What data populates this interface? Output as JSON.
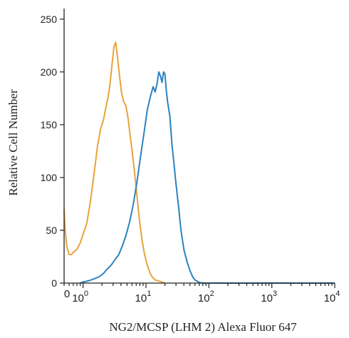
{
  "chart_data": {
    "type": "line",
    "title": "",
    "xlabel": "NG2/MCSP (LHM 2) Alexa Fluor 647",
    "ylabel": "Relative Cell Number",
    "x_scale": "log",
    "x_axis_start_label": "0",
    "xlim": [
      0.5,
      10000
    ],
    "ylim": [
      0,
      260
    ],
    "y_ticks": [
      0,
      50,
      100,
      150,
      200,
      250
    ],
    "x_tick_labels": [
      {
        "base": "10",
        "exp": "0",
        "value": 1
      },
      {
        "base": "10",
        "exp": "1",
        "value": 10
      },
      {
        "base": "10",
        "exp": "2",
        "value": 100
      },
      {
        "base": "10",
        "exp": "3",
        "value": 1000
      },
      {
        "base": "10",
        "exp": "4",
        "value": 10000
      }
    ],
    "grid": false,
    "legend": "none",
    "series": [
      {
        "color": "#E8A33A",
        "x": [
          0.5,
          0.52,
          0.55,
          0.6,
          0.65,
          0.7,
          0.8,
          0.9,
          1.0,
          1.15,
          1.3,
          1.5,
          1.7,
          1.9,
          2.1,
          2.3,
          2.5,
          2.7,
          2.9,
          3.1,
          3.3,
          3.5,
          3.8,
          4.1,
          4.4,
          4.8,
          5.2,
          5.6,
          6.0,
          6.5,
          7.0,
          7.5,
          8.0,
          8.7,
          9.5,
          10.5,
          11.5,
          12.5,
          14,
          16,
          18,
          20
        ],
        "y": [
          70,
          50,
          35,
          27,
          27,
          29,
          32,
          38,
          46,
          57,
          76,
          104,
          130,
          146,
          154,
          166,
          176,
          190,
          208,
          224,
          228,
          216,
          196,
          180,
          172,
          168,
          156,
          140,
          126,
          108,
          90,
          72,
          56,
          40,
          27,
          17,
          10,
          6,
          3,
          2,
          1,
          0
        ]
      },
      {
        "color": "#2B83C0",
        "x": [
          0.9,
          1.0,
          1.2,
          1.5,
          1.8,
          2.1,
          2.4,
          2.8,
          3.2,
          3.7,
          4.2,
          4.8,
          5.5,
          6.3,
          7.2,
          8.2,
          9.3,
          10.5,
          11.8,
          13.0,
          14.0,
          15.0,
          16.0,
          17.0,
          18.0,
          19.0,
          20.0,
          21.0,
          22.0,
          24.0,
          26.0,
          28.0,
          30.0,
          33.0,
          36.0,
          40.0,
          45.0,
          50.0,
          55.0,
          60.0,
          66.0,
          72.0,
          80.0,
          100.0,
          300.0,
          10000.0
        ],
        "y": [
          0,
          1,
          2,
          4,
          6,
          9,
          13,
          17,
          22,
          27,
          35,
          45,
          58,
          75,
          96,
          120,
          142,
          164,
          177,
          186,
          181,
          189,
          200,
          196,
          190,
          200,
          198,
          183,
          172,
          158,
          130,
          112,
          94,
          72,
          50,
          32,
          20,
          12,
          6,
          3,
          1.5,
          0.5,
          0,
          0,
          0,
          0
        ]
      }
    ]
  }
}
